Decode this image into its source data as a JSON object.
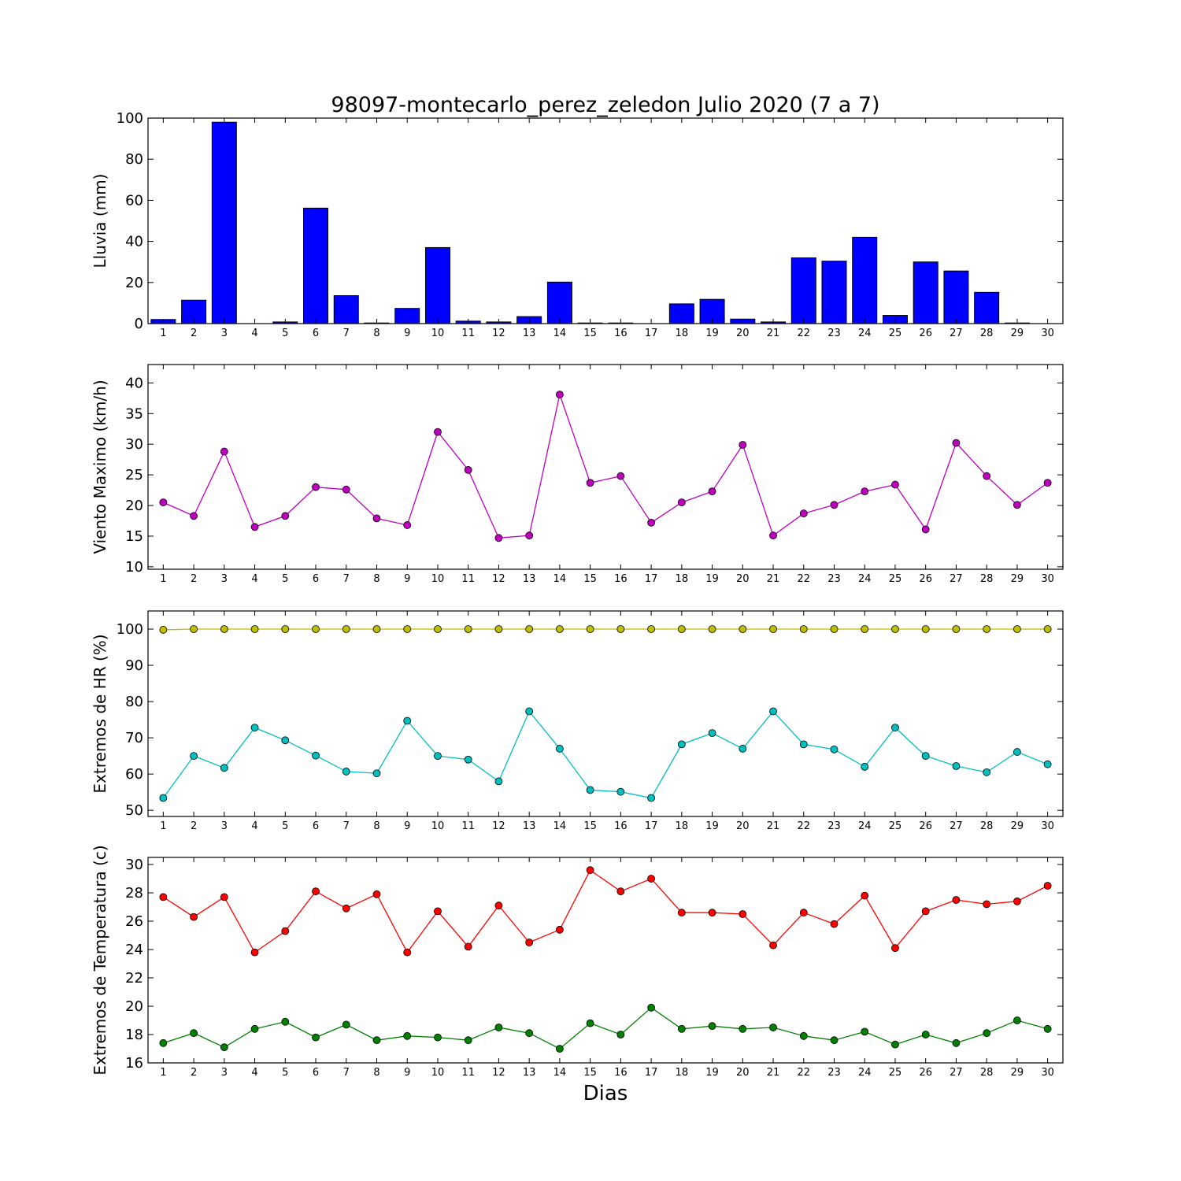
{
  "figure": {
    "title": "98097-montecarlo_perez_zeledon Julio 2020  (7 a 7)",
    "xlabel": "Dias"
  },
  "chart_data": [
    {
      "type": "bar",
      "ylabel": "Lluvia (mm)",
      "categories": [
        1,
        2,
        3,
        4,
        5,
        6,
        7,
        8,
        9,
        10,
        11,
        12,
        13,
        14,
        15,
        16,
        17,
        18,
        19,
        20,
        21,
        22,
        23,
        24,
        25,
        26,
        27,
        28,
        29,
        30
      ],
      "values": [
        2.0,
        11.4,
        98.0,
        0.0,
        0.8,
        56.2,
        13.6,
        0.3,
        7.4,
        37.0,
        1.2,
        0.8,
        3.4,
        20.2,
        0.3,
        0.3,
        0.0,
        9.6,
        11.8,
        2.2,
        0.8,
        32.0,
        30.4,
        42.0,
        4.0,
        30.0,
        25.6,
        15.2,
        0.3,
        0.0
      ],
      "xlim": [
        0.5,
        30.5
      ],
      "ylim": [
        0,
        100
      ],
      "yticks": [
        0,
        20,
        40,
        60,
        80,
        100
      ],
      "color": "#0000ff",
      "grid": false
    },
    {
      "type": "line",
      "ylabel": "Viento Maximo (km/h)",
      "x": [
        1,
        2,
        3,
        4,
        5,
        6,
        7,
        8,
        9,
        10,
        11,
        12,
        13,
        14,
        15,
        16,
        17,
        18,
        19,
        20,
        21,
        22,
        23,
        24,
        25,
        26,
        27,
        28,
        29,
        30
      ],
      "series": [
        {
          "values": [
            20.5,
            18.3,
            28.8,
            16.5,
            18.3,
            23.0,
            22.6,
            17.9,
            16.8,
            32.0,
            25.8,
            14.7,
            15.1,
            38.1,
            23.7,
            24.8,
            17.2,
            20.5,
            22.3,
            29.9,
            15.1,
            18.7,
            20.1,
            22.3,
            23.4,
            16.1,
            30.2,
            24.8,
            20.1,
            23.7
          ],
          "color": "#bf00bf"
        }
      ],
      "xlim": [
        0.5,
        30.5
      ],
      "ylim": [
        9.6,
        43
      ],
      "yticks": [
        10,
        15,
        20,
        25,
        30,
        35,
        40
      ],
      "grid": false
    },
    {
      "type": "line",
      "ylabel": "Extremos de HR (%)",
      "x": [
        1,
        2,
        3,
        4,
        5,
        6,
        7,
        8,
        9,
        10,
        11,
        12,
        13,
        14,
        15,
        16,
        17,
        18,
        19,
        20,
        21,
        22,
        23,
        24,
        25,
        26,
        27,
        28,
        29,
        30
      ],
      "series": [
        {
          "values": [
            99.8,
            100,
            100,
            100,
            100,
            100,
            100,
            100,
            100,
            100,
            100,
            100,
            100,
            100,
            100,
            100,
            100,
            100,
            100,
            100,
            100,
            100,
            100,
            100,
            100,
            100,
            100,
            100,
            100,
            100
          ],
          "color": "#bfbf00"
        },
        {
          "values": [
            53.4,
            65.0,
            61.7,
            72.8,
            69.3,
            65.1,
            60.7,
            60.2,
            74.7,
            65.0,
            64.0,
            58.0,
            77.3,
            67.0,
            55.6,
            55.1,
            53.4,
            68.2,
            71.3,
            67.0,
            77.3,
            68.2,
            66.8,
            62.0,
            72.8,
            65.0,
            62.2,
            60.5,
            66.1,
            62.7
          ],
          "color": "#00bfbf"
        }
      ],
      "xlim": [
        0.5,
        30.5
      ],
      "ylim": [
        48.3,
        105
      ],
      "yticks": [
        50,
        60,
        70,
        80,
        90,
        100
      ],
      "grid": false
    },
    {
      "type": "line",
      "ylabel": "Extremos de Temperatura (c)",
      "x": [
        1,
        2,
        3,
        4,
        5,
        6,
        7,
        8,
        9,
        10,
        11,
        12,
        13,
        14,
        15,
        16,
        17,
        18,
        19,
        20,
        21,
        22,
        23,
        24,
        25,
        26,
        27,
        28,
        29,
        30
      ],
      "series": [
        {
          "values": [
            27.7,
            26.3,
            27.7,
            23.8,
            25.3,
            28.1,
            26.9,
            27.9,
            23.8,
            26.7,
            24.2,
            27.1,
            24.5,
            25.4,
            29.6,
            28.1,
            29.0,
            26.6,
            26.6,
            26.5,
            24.3,
            26.6,
            25.8,
            27.8,
            24.1,
            26.7,
            27.5,
            27.2,
            27.4,
            28.5
          ],
          "color": "#ff0000"
        },
        {
          "values": [
            17.4,
            18.1,
            17.1,
            18.4,
            18.9,
            17.8,
            18.7,
            17.6,
            17.9,
            17.8,
            17.6,
            18.5,
            18.1,
            17.0,
            18.8,
            18.0,
            19.9,
            18.4,
            18.6,
            18.4,
            18.5,
            17.9,
            17.6,
            18.2,
            17.3,
            18.0,
            17.4,
            18.1,
            19.0,
            18.4
          ],
          "color": "#008000"
        }
      ],
      "xlim": [
        0.5,
        30.5
      ],
      "ylim": [
        16,
        30.5
      ],
      "yticks": [
        16,
        18,
        20,
        22,
        24,
        26,
        28,
        30
      ],
      "grid": false
    }
  ]
}
